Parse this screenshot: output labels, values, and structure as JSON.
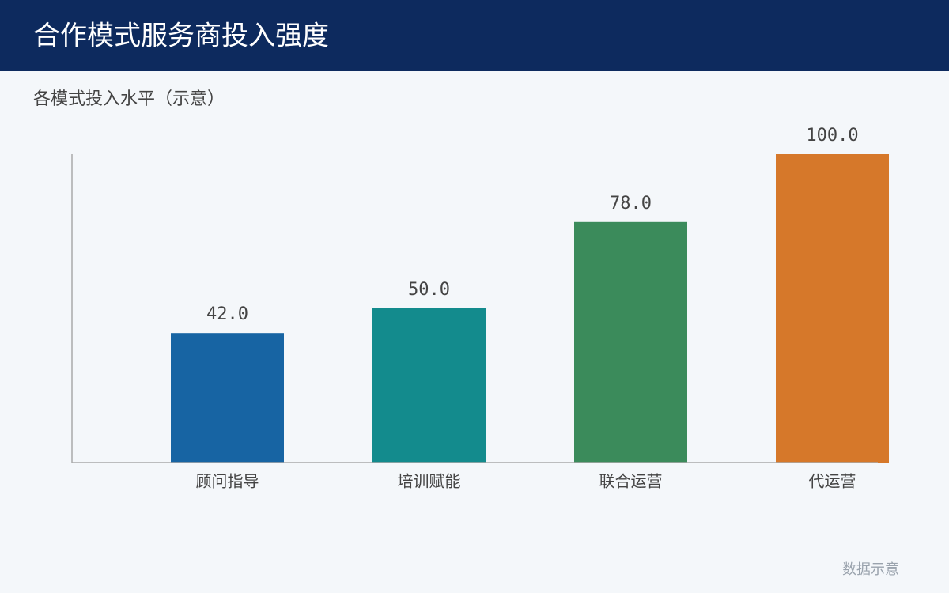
{
  "chart_data": {
    "type": "bar",
    "title": "合作模式服务商投入强度",
    "subtitle": "各模式投入水平（示意）",
    "categories": [
      "顾问指导",
      "培训赋能",
      "联合运营",
      "代运营"
    ],
    "values": [
      42,
      50,
      78,
      100
    ],
    "value_labels": [
      "42.0",
      "50.0",
      "78.0",
      "100.0"
    ],
    "colors": [
      "#1764a3",
      "#138b8d",
      "#3b8b5b",
      "#d6782a"
    ],
    "ylim": [
      0,
      100
    ],
    "annotation": "数据示意"
  }
}
